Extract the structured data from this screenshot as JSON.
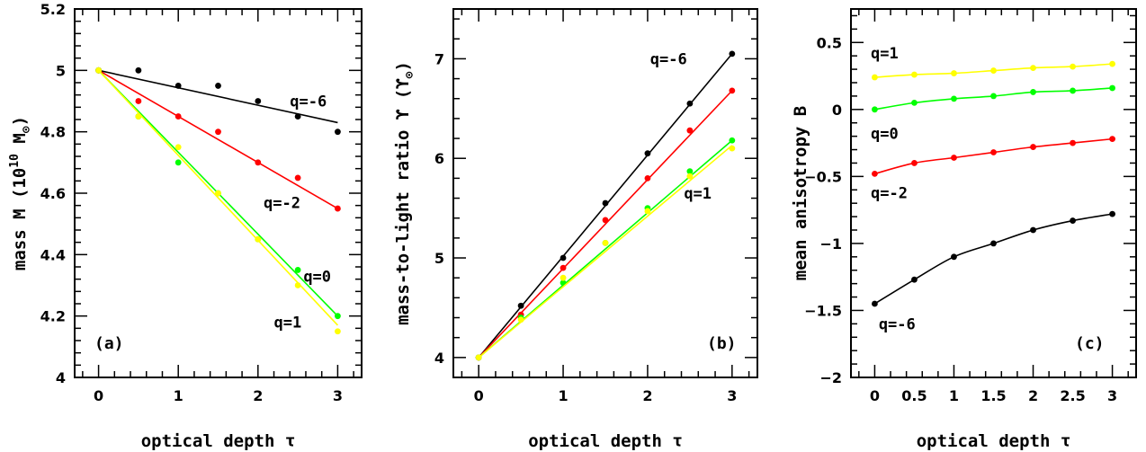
{
  "chart_data": [
    {
      "type": "scatter",
      "panel_label": "(a)",
      "xlabel": "optical depth τ",
      "ylabel_parts": [
        "mass M (10",
        "10",
        " M",
        "⊙",
        ")"
      ],
      "xlim": [
        -0.3,
        3.3
      ],
      "ylim": [
        4.0,
        5.2
      ],
      "x_ticks": [
        0,
        1,
        2,
        3
      ],
      "y_ticks": [
        4,
        4.2,
        4.4,
        4.6,
        4.8,
        5,
        5.2
      ],
      "y_tick_labels": [
        "4",
        "4.2",
        "4.4",
        "4.6",
        "4.8",
        "5",
        "5.2"
      ],
      "series": [
        {
          "name": "q=-6",
          "color": "#000000",
          "points": [
            [
              0,
              5.0
            ],
            [
              0.5,
              5.0
            ],
            [
              1,
              4.95
            ],
            [
              1.5,
              4.95
            ],
            [
              2,
              4.9
            ],
            [
              2.5,
              4.85
            ],
            [
              3,
              4.8
            ]
          ],
          "fit": [
            [
              0,
              5.0
            ],
            [
              3,
              4.83
            ]
          ]
        },
        {
          "name": "q=-2",
          "color": "#ff0000",
          "points": [
            [
              0,
              5.0
            ],
            [
              0.5,
              4.9
            ],
            [
              1,
              4.85
            ],
            [
              1.5,
              4.8
            ],
            [
              2,
              4.7
            ],
            [
              2.5,
              4.65
            ],
            [
              3,
              4.55
            ]
          ],
          "fit": [
            [
              0,
              5.0
            ],
            [
              3,
              4.55
            ]
          ]
        },
        {
          "name": "q=0",
          "color": "#00ff00",
          "points": [
            [
              0,
              5.0
            ],
            [
              0.5,
              4.85
            ],
            [
              1,
              4.7
            ],
            [
              1.5,
              4.6
            ],
            [
              2,
              4.45
            ],
            [
              2.5,
              4.35
            ],
            [
              3,
              4.2
            ]
          ],
          "fit": [
            [
              0,
              5.0
            ],
            [
              3,
              4.2
            ]
          ]
        },
        {
          "name": "q=1",
          "color": "#ffff00",
          "points": [
            [
              0,
              5.0
            ],
            [
              0.5,
              4.85
            ],
            [
              1,
              4.75
            ],
            [
              1.5,
              4.6
            ],
            [
              2,
              4.45
            ],
            [
              2.5,
              4.3
            ],
            [
              3,
              4.15
            ]
          ],
          "fit": [
            [
              0,
              5.0
            ],
            [
              3,
              4.17
            ]
          ]
        }
      ],
      "annotations": [
        {
          "text": "q=-6",
          "x": 2.4,
          "y": 4.9
        },
        {
          "text": "q=-2",
          "x": 2.07,
          "y": 4.57
        },
        {
          "text": "q=0",
          "x": 2.57,
          "y": 4.33
        },
        {
          "text": "q=1",
          "x": 2.2,
          "y": 4.18
        }
      ]
    },
    {
      "type": "scatter",
      "panel_label": "(b)",
      "xlabel": "optical depth τ",
      "ylabel_parts": [
        "mass-to-light ratio ϒ (ϒ",
        "⊙",
        ")"
      ],
      "xlim": [
        -0.3,
        3.3
      ],
      "ylim": [
        3.8,
        7.5
      ],
      "x_ticks": [
        0,
        1,
        2,
        3
      ],
      "y_ticks": [
        4,
        5,
        6,
        7
      ],
      "y_tick_labels": [
        "4",
        "5",
        "6",
        "7"
      ],
      "series": [
        {
          "name": "q=-6",
          "color": "#000000",
          "points": [
            [
              0,
              4.0
            ],
            [
              0.5,
              4.52
            ],
            [
              1,
              5.0
            ],
            [
              1.5,
              5.55
            ],
            [
              2,
              6.05
            ],
            [
              2.5,
              6.55
            ],
            [
              3,
              7.05
            ]
          ],
          "fit": [
            [
              0,
              4.0
            ],
            [
              3,
              7.05
            ]
          ]
        },
        {
          "name": "q=-2",
          "color": "#ff0000",
          "points": [
            [
              0,
              4.0
            ],
            [
              0.5,
              4.43
            ],
            [
              1,
              4.9
            ],
            [
              1.5,
              5.38
            ],
            [
              2,
              5.8
            ],
            [
              2.5,
              6.28
            ],
            [
              3,
              6.68
            ]
          ],
          "fit": [
            [
              0,
              4.0
            ],
            [
              3,
              6.68
            ]
          ]
        },
        {
          "name": "q=0",
          "color": "#00ff00",
          "points": [
            [
              0,
              4.0
            ],
            [
              0.5,
              4.4
            ],
            [
              1,
              4.75
            ],
            [
              1.5,
              5.15
            ],
            [
              2,
              5.5
            ],
            [
              2.5,
              5.87
            ],
            [
              3,
              6.18
            ]
          ],
          "fit": [
            [
              0,
              4.0
            ],
            [
              3,
              6.18
            ]
          ]
        },
        {
          "name": "q=1",
          "color": "#ffff00",
          "points": [
            [
              0,
              4.0
            ],
            [
              0.5,
              4.38
            ],
            [
              1,
              4.8
            ],
            [
              1.5,
              5.15
            ],
            [
              2,
              5.47
            ],
            [
              2.5,
              5.82
            ],
            [
              3,
              6.1
            ]
          ],
          "fit": [
            [
              0,
              4.0
            ],
            [
              3,
              6.13
            ]
          ]
        }
      ],
      "annotations": [
        {
          "text": "q=-6",
          "x": 2.03,
          "y": 7.0
        },
        {
          "text": "q=1",
          "x": 2.43,
          "y": 5.65
        }
      ]
    },
    {
      "type": "scatter",
      "panel_label": "(c)",
      "xlabel": "optical depth τ",
      "ylabel_parts": [
        "mean anisotropy B"
      ],
      "xlim": [
        -0.3,
        3.3
      ],
      "ylim": [
        -2.0,
        0.75
      ],
      "x_ticks": [
        0,
        0.5,
        1,
        1.5,
        2,
        2.5,
        3
      ],
      "x_tick_labels": [
        "0",
        "0.5",
        "1",
        "1.5",
        "2",
        "2.5",
        "3"
      ],
      "y_ticks": [
        -2,
        -1.5,
        -1,
        -0.5,
        0,
        0.5
      ],
      "y_tick_labels": [
        "−2",
        "−1.5",
        "−1",
        "−0.5",
        "0",
        "0.5"
      ],
      "series": [
        {
          "name": "q=1",
          "color": "#ffff00",
          "points": [
            [
              0,
              0.24
            ],
            [
              0.5,
              0.26
            ],
            [
              1,
              0.27
            ],
            [
              1.5,
              0.29
            ],
            [
              2,
              0.31
            ],
            [
              2.5,
              0.32
            ],
            [
              3,
              0.34
            ]
          ]
        },
        {
          "name": "q=0",
          "color": "#00ff00",
          "points": [
            [
              0,
              0.0
            ],
            [
              0.5,
              0.05
            ],
            [
              1,
              0.08
            ],
            [
              1.5,
              0.1
            ],
            [
              2,
              0.13
            ],
            [
              2.5,
              0.14
            ],
            [
              3,
              0.16
            ]
          ]
        },
        {
          "name": "q=-2",
          "color": "#ff0000",
          "points": [
            [
              0,
              -0.48
            ],
            [
              0.5,
              -0.4
            ],
            [
              1,
              -0.36
            ],
            [
              1.5,
              -0.32
            ],
            [
              2,
              -0.28
            ],
            [
              2.5,
              -0.25
            ],
            [
              3,
              -0.22
            ]
          ]
        },
        {
          "name": "q=-6",
          "color": "#000000",
          "points": [
            [
              0,
              -1.45
            ],
            [
              0.5,
              -1.27
            ],
            [
              1,
              -1.1
            ],
            [
              1.5,
              -1.0
            ],
            [
              2,
              -0.9
            ],
            [
              2.5,
              -0.83
            ],
            [
              3,
              -0.78
            ]
          ]
        }
      ],
      "annotations": [
        {
          "text": "q=1",
          "x": -0.05,
          "y": 0.42
        },
        {
          "text": "q=0",
          "x": -0.05,
          "y": -0.18
        },
        {
          "text": "q=-2",
          "x": -0.05,
          "y": -0.62
        },
        {
          "text": "q=-6",
          "x": 0.05,
          "y": -1.6
        }
      ]
    }
  ]
}
